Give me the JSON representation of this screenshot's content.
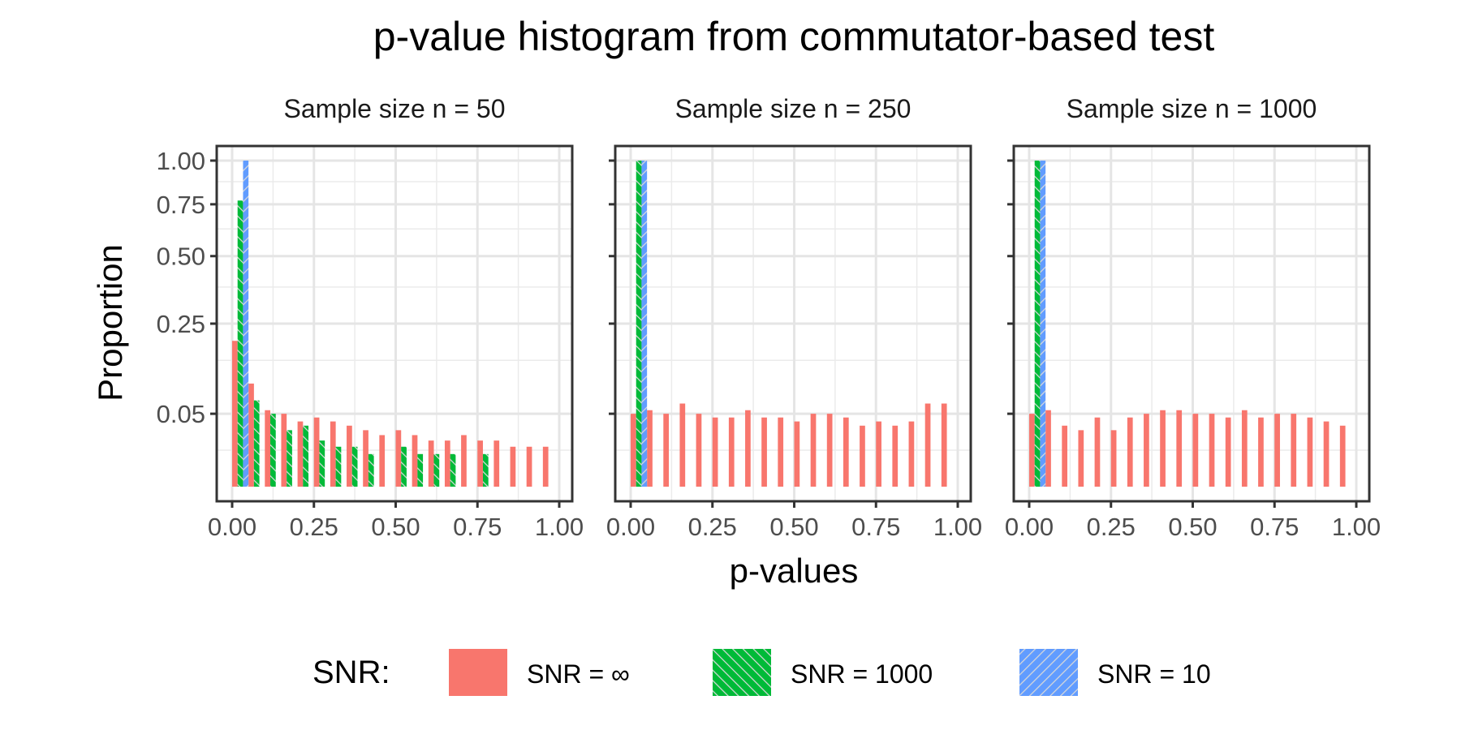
{
  "chart_data": {
    "type": "bar",
    "title": "p-value histogram from commutator-based test",
    "xlabel": "p-values",
    "ylabel": "Proportion",
    "xlim": [
      0,
      1
    ],
    "ylim": [
      0,
      1
    ],
    "y_scale": "sqrt",
    "x_ticks": [
      "0.00",
      "0.25",
      "0.50",
      "0.75",
      "1.00"
    ],
    "y_ticks": [
      "0.05",
      "0.25",
      "0.50",
      "0.75",
      "1.00"
    ],
    "grid": true,
    "legend": {
      "title": "SNR:",
      "position": "bottom",
      "entries": [
        {
          "label": "SNR = ∞",
          "color": "#F8766D",
          "pattern": "solid"
        },
        {
          "label": "SNR = 1000",
          "color": "#00BA38",
          "pattern": "hatched"
        },
        {
          "label": "SNR = 10",
          "color": "#619CFF",
          "pattern": "hatched"
        }
      ]
    },
    "bin_centers": [
      0.025,
      0.075,
      0.125,
      0.175,
      0.225,
      0.275,
      0.325,
      0.375,
      0.425,
      0.475,
      0.525,
      0.575,
      0.625,
      0.675,
      0.725,
      0.775,
      0.825,
      0.875,
      0.925,
      0.975
    ],
    "panels": [
      {
        "strip": "Sample size n = 50",
        "series": [
          {
            "name": "SNR = ∞",
            "values": [
              0.2,
              0.1,
              0.055,
              0.05,
              0.04,
              0.045,
              0.04,
              0.035,
              0.03,
              0.025,
              0.03,
              0.025,
              0.02,
              0.02,
              0.025,
              0.02,
              0.02,
              0.015,
              0.015,
              0.015
            ]
          },
          {
            "name": "SNR = 1000",
            "values": [
              0.77,
              0.07,
              0.05,
              0.03,
              0.035,
              0.02,
              0.015,
              0.015,
              0.01,
              0.0,
              0.015,
              0.01,
              0.01,
              0.01,
              0.0,
              0.01,
              0.0,
              0.0,
              0.0,
              0.0
            ]
          },
          {
            "name": "SNR = 10",
            "values": [
              1.0,
              0,
              0,
              0,
              0,
              0,
              0,
              0,
              0,
              0,
              0,
              0,
              0,
              0,
              0,
              0,
              0,
              0,
              0,
              0
            ]
          }
        ]
      },
      {
        "strip": "Sample size n = 250",
        "series": [
          {
            "name": "SNR = ∞",
            "values": [
              0.05,
              0.055,
              0.05,
              0.065,
              0.05,
              0.045,
              0.045,
              0.055,
              0.045,
              0.045,
              0.04,
              0.05,
              0.05,
              0.045,
              0.035,
              0.04,
              0.035,
              0.04,
              0.065,
              0.065
            ]
          },
          {
            "name": "SNR = 1000",
            "values": [
              1.0,
              0,
              0,
              0,
              0,
              0,
              0,
              0,
              0,
              0,
              0,
              0,
              0,
              0,
              0,
              0,
              0,
              0,
              0,
              0
            ]
          },
          {
            "name": "SNR = 10",
            "values": [
              1.0,
              0,
              0,
              0,
              0,
              0,
              0,
              0,
              0,
              0,
              0,
              0,
              0,
              0,
              0,
              0,
              0,
              0,
              0,
              0
            ]
          }
        ]
      },
      {
        "strip": "Sample size n = 1000",
        "series": [
          {
            "name": "SNR = ∞",
            "values": [
              0.05,
              0.055,
              0.035,
              0.03,
              0.045,
              0.03,
              0.045,
              0.05,
              0.055,
              0.055,
              0.05,
              0.05,
              0.045,
              0.055,
              0.045,
              0.05,
              0.05,
              0.045,
              0.04,
              0.035
            ]
          },
          {
            "name": "SNR = 1000",
            "values": [
              1.0,
              0,
              0,
              0,
              0,
              0,
              0,
              0,
              0,
              0,
              0,
              0,
              0,
              0,
              0,
              0,
              0,
              0,
              0,
              0
            ]
          },
          {
            "name": "SNR = 10",
            "values": [
              1.0,
              0,
              0,
              0,
              0,
              0,
              0,
              0,
              0,
              0,
              0,
              0,
              0,
              0,
              0,
              0,
              0,
              0,
              0,
              0
            ]
          }
        ]
      }
    ]
  }
}
